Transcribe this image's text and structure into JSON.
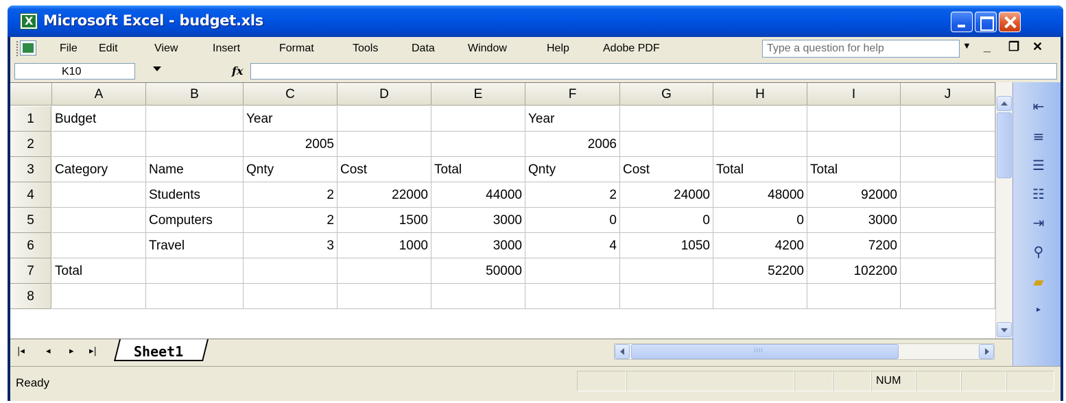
{
  "window": {
    "title": "Microsoft Excel - budget.xls"
  },
  "menu": {
    "items": [
      "File",
      "Edit",
      "View",
      "Insert",
      "Format",
      "Tools",
      "Data",
      "Window",
      "Help",
      "Adobe PDF"
    ],
    "help_placeholder": "Type a question for help"
  },
  "formula_bar": {
    "name_box": "K10",
    "fx_label": "fx",
    "formula": ""
  },
  "grid": {
    "columns": [
      "A",
      "B",
      "C",
      "D",
      "E",
      "F",
      "G",
      "H",
      "I",
      "J"
    ],
    "rows": [
      "1",
      "2",
      "3",
      "4",
      "5",
      "6",
      "7",
      "8"
    ],
    "cells": {
      "r1": [
        "Budget",
        "",
        "Year",
        "",
        "",
        "Year",
        "",
        "",
        "",
        ""
      ],
      "r2": [
        "",
        "",
        "2005",
        "",
        "",
        "2006",
        "",
        "",
        "",
        ""
      ],
      "r3": [
        "Category",
        "Name",
        "Qnty",
        "Cost",
        "Total",
        "Qnty",
        "Cost",
        "Total",
        "Total",
        ""
      ],
      "r4": [
        "",
        "Students",
        "2",
        "22000",
        "44000",
        "2",
        "24000",
        "48000",
        "92000",
        ""
      ],
      "r5": [
        "",
        "Computers",
        "2",
        "1500",
        "3000",
        "0",
        "0",
        "0",
        "3000",
        ""
      ],
      "r6": [
        "",
        "Travel",
        "3",
        "1000",
        "3000",
        "4",
        "1050",
        "4200",
        "7200",
        ""
      ],
      "r7": [
        "Total",
        "",
        "",
        "",
        "50000",
        "",
        "",
        "52200",
        "102200",
        ""
      ],
      "r8": [
        "",
        "",
        "",
        "",
        "",
        "",
        "",
        "",
        "",
        ""
      ]
    }
  },
  "sheets": {
    "active": "Sheet1"
  },
  "status": {
    "text": "Ready",
    "num": "NUM"
  },
  "colors": {
    "title_bar": "#0054e3",
    "workbook_bg": "#ece9d8",
    "close_button": "#e25c2e"
  }
}
